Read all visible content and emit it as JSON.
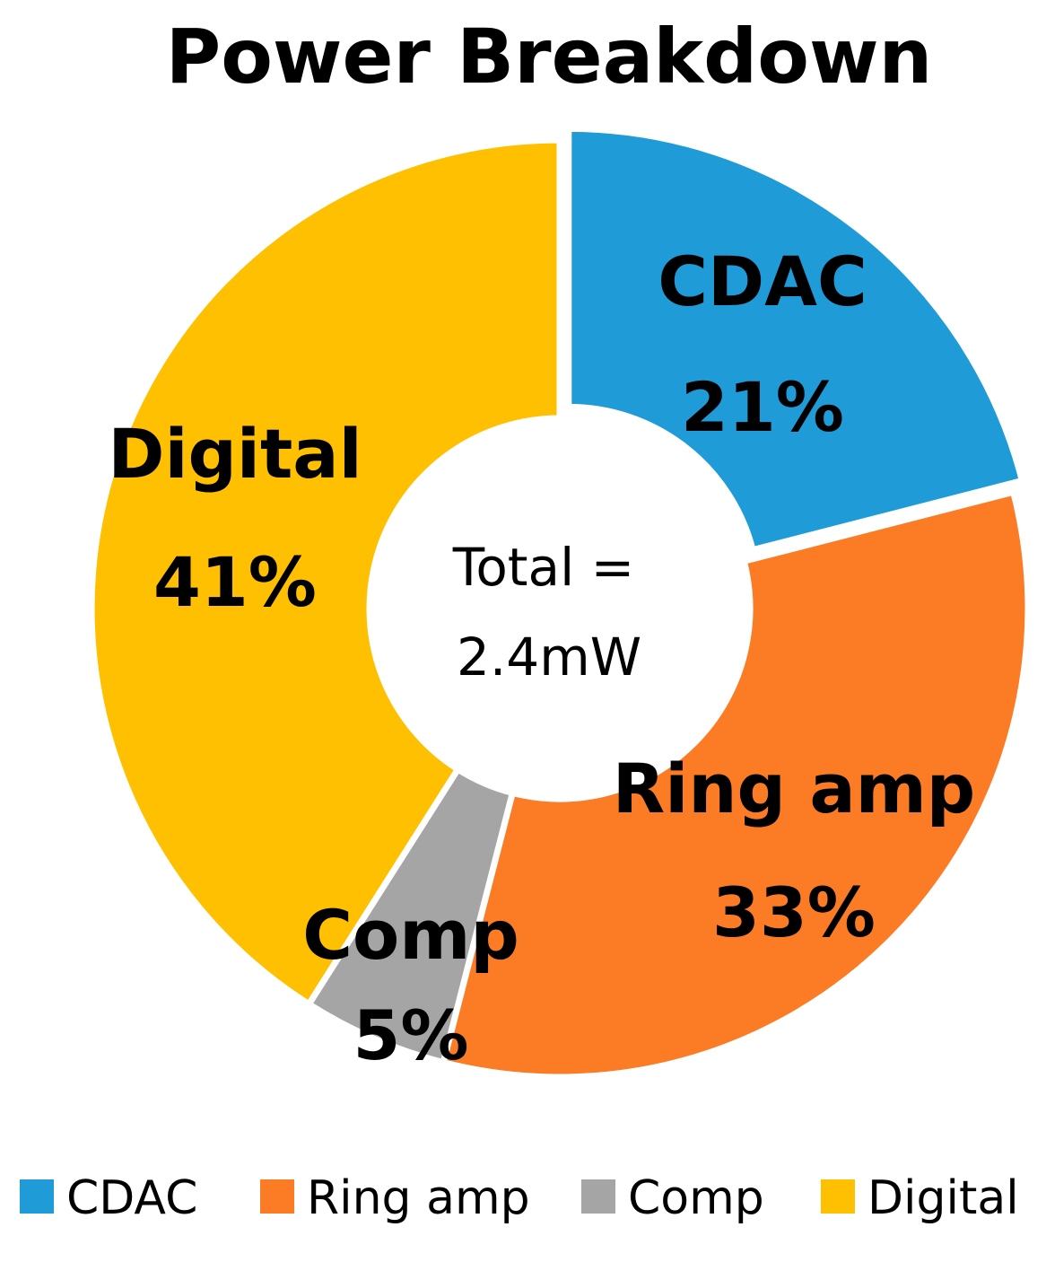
{
  "chart_data": {
    "type": "pie",
    "title": "Power Breakdown",
    "center_label": [
      "Total =",
      "2.4mW"
    ],
    "categories": [
      "CDAC",
      "Ring amp",
      "Comp",
      "Digital"
    ],
    "values": [
      21,
      33,
      5,
      41
    ],
    "unit": "%",
    "value_labels": [
      "21%",
      "33%",
      "5%",
      "41%"
    ],
    "colors": [
      "#1F9BD7",
      "#FB7C24",
      "#A5A5A5",
      "#FEC000"
    ],
    "donut": true,
    "legend_position": "bottom"
  }
}
